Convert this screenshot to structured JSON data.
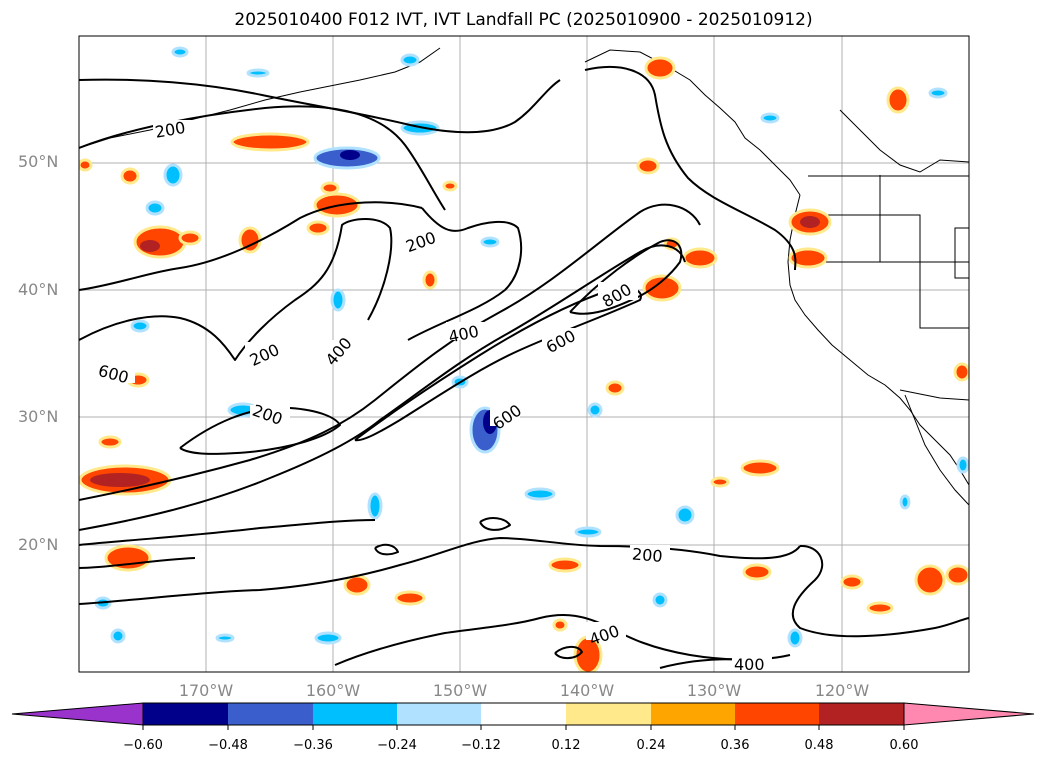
{
  "title": "2025010400 F012 IVT, IVT Landfall PC (2025010900 - 2025010912)",
  "chart_data": {
    "type": "map-contour",
    "projection": "equirectangular",
    "extent": {
      "lon": [
        -180,
        -110
      ],
      "lat": [
        10,
        60
      ]
    },
    "lat_ticks": [
      "20°N",
      "30°N",
      "40°N",
      "50°N"
    ],
    "lat_values": [
      20,
      30,
      40,
      50
    ],
    "lon_ticks": [
      "170°W",
      "160°W",
      "150°W",
      "140°W",
      "130°W",
      "120°W"
    ],
    "lon_values": [
      -170,
      -160,
      -150,
      -140,
      -130,
      -120
    ],
    "contour_labels": [
      "200",
      "200",
      "200",
      "200",
      "200",
      "400",
      "400",
      "400",
      "400",
      "600",
      "600",
      "600",
      "800"
    ],
    "colorbar": {
      "ticks": [
        "−0.60",
        "−0.48",
        "−0.36",
        "−0.24",
        "−0.12",
        "0.12",
        "0.24",
        "0.36",
        "0.48",
        "0.60"
      ],
      "colors": [
        "#9933cc",
        "#00008b",
        "#3a5fcd",
        "#00bfff",
        "#b0e2ff",
        "#ffffff",
        "#ffe98a",
        "#ffa500",
        "#ff4500",
        "#b22222",
        "#ff88b0"
      ],
      "extend": "both"
    }
  }
}
